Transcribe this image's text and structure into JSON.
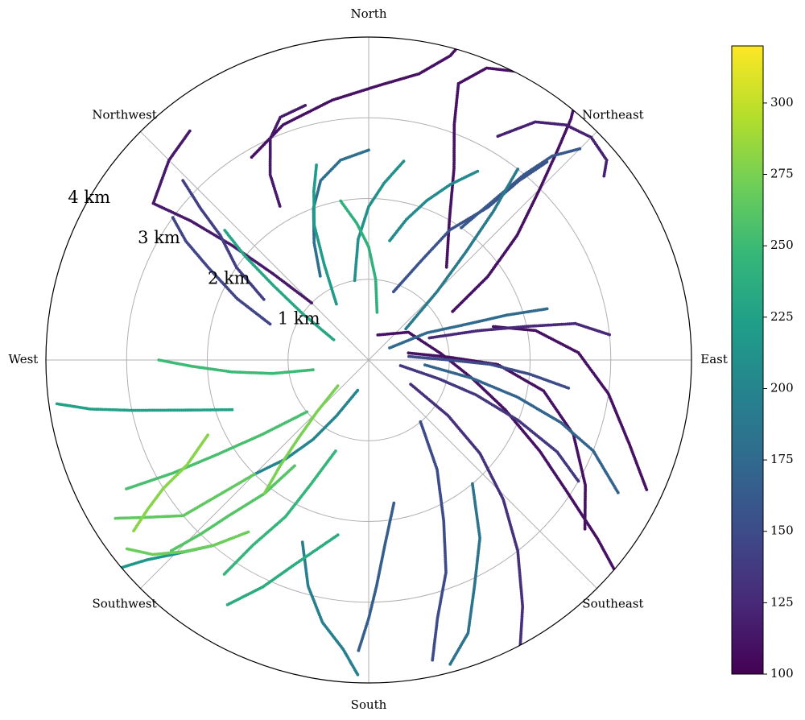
{
  "chart_data": {
    "type": "scatter",
    "projection": "polar",
    "theta_zero_location": "north",
    "theta_direction": "clockwise",
    "radius_max": 4,
    "grid": true,
    "direction_labels": [
      {
        "name": "North",
        "angle_deg": 0
      },
      {
        "name": "Northeast",
        "angle_deg": 45
      },
      {
        "name": "East",
        "angle_deg": 90
      },
      {
        "name": "Southeast",
        "angle_deg": 135
      },
      {
        "name": "South",
        "angle_deg": 180
      },
      {
        "name": "Southwest",
        "angle_deg": 225
      },
      {
        "name": "West",
        "angle_deg": 270
      },
      {
        "name": "Northwest",
        "angle_deg": 315
      }
    ],
    "rings": [
      {
        "value": 1,
        "label": "1 km"
      },
      {
        "value": 2,
        "label": "2 km"
      },
      {
        "value": 3,
        "label": "3 km"
      },
      {
        "value": 4,
        "label": "4 km"
      }
    ],
    "colorbar": {
      "colormap": "viridis",
      "vmin": 100,
      "vmax": 320,
      "ticks": [
        100,
        125,
        150,
        175,
        200,
        225,
        250,
        275,
        300
      ]
    },
    "colormap_stops": [
      "#440154",
      "#482878",
      "#3e4a89",
      "#31688e",
      "#26828e",
      "#1f9e89",
      "#35b779",
      "#6ece58",
      "#b5de2b",
      "#fde725"
    ],
    "tracks": [
      {
        "value": 110,
        "points": [
          [
            0.33,
            20
          ],
          [
            0.6,
            55
          ],
          [
            0.9,
            85
          ],
          [
            1.3,
            100
          ],
          [
            1.8,
            110
          ],
          [
            2.4,
            118
          ],
          [
            3.0,
            124
          ],
          [
            3.6,
            128
          ],
          [
            4.1,
            131
          ]
        ]
      },
      {
        "value": 110,
        "points": [
          [
            0.5,
            80
          ],
          [
            1.0,
            88
          ],
          [
            1.6,
            92
          ],
          [
            2.2,
            100
          ],
          [
            2.7,
            110
          ],
          [
            3.1,
            120
          ],
          [
            3.4,
            128
          ]
        ]
      },
      {
        "value": 110,
        "points": [
          [
            1.6,
            75
          ],
          [
            2.1,
            80
          ],
          [
            2.6,
            88
          ],
          [
            3.0,
            98
          ],
          [
            3.4,
            108
          ],
          [
            3.8,
            115
          ]
        ]
      },
      {
        "value": 110,
        "points": [
          [
            1.2,
            60
          ],
          [
            1.8,
            55
          ],
          [
            2.4,
            50
          ],
          [
            3.0,
            45
          ],
          [
            3.5,
            42
          ],
          [
            3.9,
            40
          ],
          [
            4.2,
            38
          ]
        ]
      },
      {
        "value": 110,
        "points": [
          [
            1.5,
            40
          ],
          [
            2.0,
            30
          ],
          [
            2.6,
            24
          ],
          [
            3.1,
            20
          ],
          [
            3.6,
            18
          ],
          [
            3.9,
            22
          ],
          [
            4.1,
            30
          ]
        ]
      },
      {
        "value": 110,
        "points": [
          [
            2.9,
            330
          ],
          [
            3.1,
            340
          ],
          [
            3.25,
            352
          ],
          [
            3.4,
            2
          ],
          [
            3.6,
            10
          ],
          [
            3.9,
            15
          ],
          [
            4.2,
            17
          ]
        ]
      },
      {
        "value": 115,
        "points": [
          [
            1.0,
            315
          ],
          [
            1.6,
            312
          ],
          [
            2.2,
            310
          ],
          [
            2.8,
            308
          ],
          [
            3.3,
            306
          ],
          [
            3.5,
            315
          ],
          [
            3.6,
            322
          ]
        ]
      },
      {
        "value": 115,
        "points": [
          [
            2.2,
            330
          ],
          [
            2.6,
            332
          ],
          [
            3.0,
            336
          ],
          [
            3.2,
            340
          ],
          [
            3.25,
            346
          ]
        ]
      },
      {
        "value": 120,
        "points": [
          [
            3.2,
            30
          ],
          [
            3.6,
            35
          ],
          [
            3.8,
            40
          ],
          [
            3.9,
            45
          ],
          [
            3.85,
            50
          ],
          [
            3.7,
            52
          ]
        ]
      },
      {
        "value": 125,
        "points": [
          [
            0.8,
            70
          ],
          [
            1.4,
            75
          ],
          [
            2.0,
            78
          ],
          [
            2.6,
            80
          ],
          [
            3.0,
            84
          ]
        ]
      },
      {
        "value": 130,
        "points": [
          [
            0.6,
            120
          ],
          [
            1.2,
            125
          ],
          [
            1.8,
            130
          ],
          [
            2.4,
            136
          ],
          [
            3.0,
            142
          ],
          [
            3.6,
            148
          ],
          [
            4.0,
            152
          ]
        ]
      },
      {
        "value": 135,
        "points": [
          [
            0.4,
            100
          ],
          [
            0.9,
            105
          ],
          [
            1.4,
            108
          ],
          [
            2.0,
            112
          ],
          [
            2.6,
            116
          ],
          [
            3.0,
            120
          ]
        ]
      },
      {
        "value": 140,
        "points": [
          [
            1.5,
            300
          ],
          [
            2.0,
            305
          ],
          [
            2.4,
            310
          ],
          [
            2.8,
            312
          ],
          [
            3.2,
            314
          ]
        ]
      },
      {
        "value": 145,
        "points": [
          [
            1.3,
            290
          ],
          [
            1.8,
            295
          ],
          [
            2.3,
            300
          ],
          [
            2.7,
            303
          ],
          [
            3.0,
            306
          ]
        ]
      },
      {
        "value": 150,
        "points": [
          [
            0.5,
            85
          ],
          [
            1.0,
            90
          ],
          [
            1.5,
            92
          ],
          [
            2.0,
            95
          ],
          [
            2.5,
            98
          ]
        ]
      },
      {
        "value": 150,
        "points": [
          [
            1.0,
            140
          ],
          [
            1.6,
            148
          ],
          [
            2.2,
            155
          ],
          [
            2.8,
            160
          ],
          [
            3.3,
            165
          ],
          [
            3.8,
            168
          ]
        ]
      },
      {
        "value": 155,
        "points": [
          [
            0.9,
            20
          ],
          [
            1.4,
            28
          ],
          [
            1.9,
            32
          ],
          [
            2.4,
            38
          ],
          [
            2.9,
            40
          ],
          [
            3.3,
            42
          ]
        ]
      },
      {
        "value": 160,
        "points": [
          [
            2.0,
            35
          ],
          [
            2.5,
            38
          ],
          [
            3.0,
            40
          ],
          [
            3.4,
            42
          ],
          [
            3.7,
            45
          ]
        ]
      },
      {
        "value": 165,
        "points": [
          [
            1.8,
            170
          ],
          [
            2.3,
            175
          ],
          [
            2.8,
            178
          ],
          [
            3.2,
            180
          ],
          [
            3.6,
            182
          ]
        ]
      },
      {
        "value": 170,
        "points": [
          [
            0.7,
            95
          ],
          [
            1.3,
            100
          ],
          [
            1.9,
            104
          ],
          [
            2.5,
            108
          ],
          [
            3.0,
            112
          ],
          [
            3.5,
            118
          ]
        ]
      },
      {
        "value": 175,
        "points": [
          [
            0.3,
            60
          ],
          [
            0.8,
            65
          ],
          [
            1.3,
            70
          ],
          [
            1.8,
            72
          ],
          [
            2.3,
            74
          ]
        ]
      },
      {
        "value": 180,
        "points": [
          [
            1.2,
            330
          ],
          [
            1.6,
            335
          ],
          [
            2.0,
            340
          ],
          [
            2.3,
            345
          ],
          [
            2.5,
            352
          ],
          [
            2.6,
            0
          ]
        ]
      },
      {
        "value": 185,
        "points": [
          [
            2.0,
            140
          ],
          [
            2.6,
            148
          ],
          [
            3.1,
            155
          ],
          [
            3.6,
            160
          ],
          [
            3.9,
            165
          ]
        ]
      },
      {
        "value": 190,
        "points": [
          [
            0.6,
            50
          ],
          [
            1.2,
            45
          ],
          [
            1.8,
            42
          ],
          [
            2.4,
            40
          ],
          [
            3.0,
            38
          ]
        ]
      },
      {
        "value": 195,
        "points": [
          [
            2.4,
            200
          ],
          [
            2.9,
            195
          ],
          [
            3.3,
            190
          ],
          [
            3.6,
            185
          ],
          [
            3.9,
            182
          ]
        ]
      },
      {
        "value": 200,
        "points": [
          [
            0.4,
            200
          ],
          [
            0.8,
            210
          ],
          [
            1.2,
            215
          ],
          [
            1.6,
            220
          ],
          [
            2.0,
            225
          ]
        ]
      },
      {
        "value": 205,
        "points": [
          [
            1.5,
            10
          ],
          [
            1.8,
            15
          ],
          [
            2.1,
            20
          ],
          [
            2.4,
            25
          ],
          [
            2.7,
            30
          ]
        ]
      },
      {
        "value": 210,
        "points": [
          [
            1.0,
            350
          ],
          [
            1.5,
            355
          ],
          [
            1.9,
            0
          ],
          [
            2.2,
            5
          ],
          [
            2.5,
            10
          ]
        ]
      },
      {
        "value": 215,
        "points": [
          [
            3.0,
            220
          ],
          [
            3.4,
            225
          ],
          [
            3.7,
            228
          ],
          [
            4.0,
            230
          ]
        ]
      },
      {
        "value": 220,
        "points": [
          [
            0.8,
            330
          ],
          [
            1.3,
            335
          ],
          [
            1.8,
            338
          ],
          [
            2.2,
            342
          ],
          [
            2.5,
            345
          ]
        ]
      },
      {
        "value": 225,
        "points": [
          [
            1.8,
            250
          ],
          [
            2.4,
            255
          ],
          [
            3.0,
            258
          ],
          [
            3.5,
            260
          ],
          [
            3.9,
            262
          ]
        ]
      },
      {
        "value": 230,
        "points": [
          [
            0.5,
            300
          ],
          [
            1.0,
            305
          ],
          [
            1.5,
            308
          ],
          [
            2.0,
            310
          ],
          [
            2.4,
            312
          ]
        ]
      },
      {
        "value": 235,
        "points": [
          [
            2.2,
            190
          ],
          [
            2.7,
            200
          ],
          [
            3.1,
            205
          ],
          [
            3.5,
            210
          ]
        ]
      },
      {
        "value": 240,
        "points": [
          [
            0.6,
            10
          ],
          [
            1.0,
            5
          ],
          [
            1.4,
            0
          ],
          [
            1.7,
            355
          ],
          [
            2.0,
            350
          ]
        ]
      },
      {
        "value": 245,
        "points": [
          [
            1.2,
            200
          ],
          [
            1.7,
            205
          ],
          [
            2.2,
            208
          ],
          [
            2.7,
            212
          ],
          [
            3.2,
            214
          ]
        ]
      },
      {
        "value": 250,
        "points": [
          [
            0.7,
            260
          ],
          [
            1.2,
            262
          ],
          [
            1.7,
            265
          ],
          [
            2.2,
            268
          ],
          [
            2.6,
            270
          ]
        ]
      },
      {
        "value": 255,
        "points": [
          [
            1.0,
            230
          ],
          [
            1.6,
            235
          ],
          [
            2.2,
            238
          ],
          [
            2.8,
            240
          ],
          [
            3.4,
            242
          ]
        ]
      },
      {
        "value": 260,
        "points": [
          [
            1.6,
            215
          ],
          [
            2.1,
            218
          ],
          [
            2.6,
            222
          ],
          [
            3.0,
            224
          ],
          [
            3.4,
            226
          ]
        ]
      },
      {
        "value": 265,
        "points": [
          [
            2.0,
            225
          ],
          [
            2.5,
            228
          ],
          [
            3.0,
            230
          ],
          [
            3.4,
            235
          ],
          [
            3.7,
            238
          ]
        ]
      },
      {
        "value": 270,
        "points": [
          [
            2.6,
            215
          ],
          [
            3.0,
            220
          ],
          [
            3.3,
            224
          ],
          [
            3.6,
            228
          ],
          [
            3.8,
            232
          ]
        ]
      },
      {
        "value": 275,
        "points": [
          [
            0.5,
            230
          ],
          [
            0.9,
            225
          ],
          [
            1.3,
            222
          ],
          [
            1.7,
            220
          ],
          [
            2.1,
            218
          ]
        ]
      },
      {
        "value": 280,
        "points": [
          [
            2.2,
            245
          ],
          [
            2.6,
            240
          ],
          [
            3.0,
            238
          ],
          [
            3.3,
            236
          ],
          [
            3.6,
            234
          ]
        ]
      }
    ]
  }
}
